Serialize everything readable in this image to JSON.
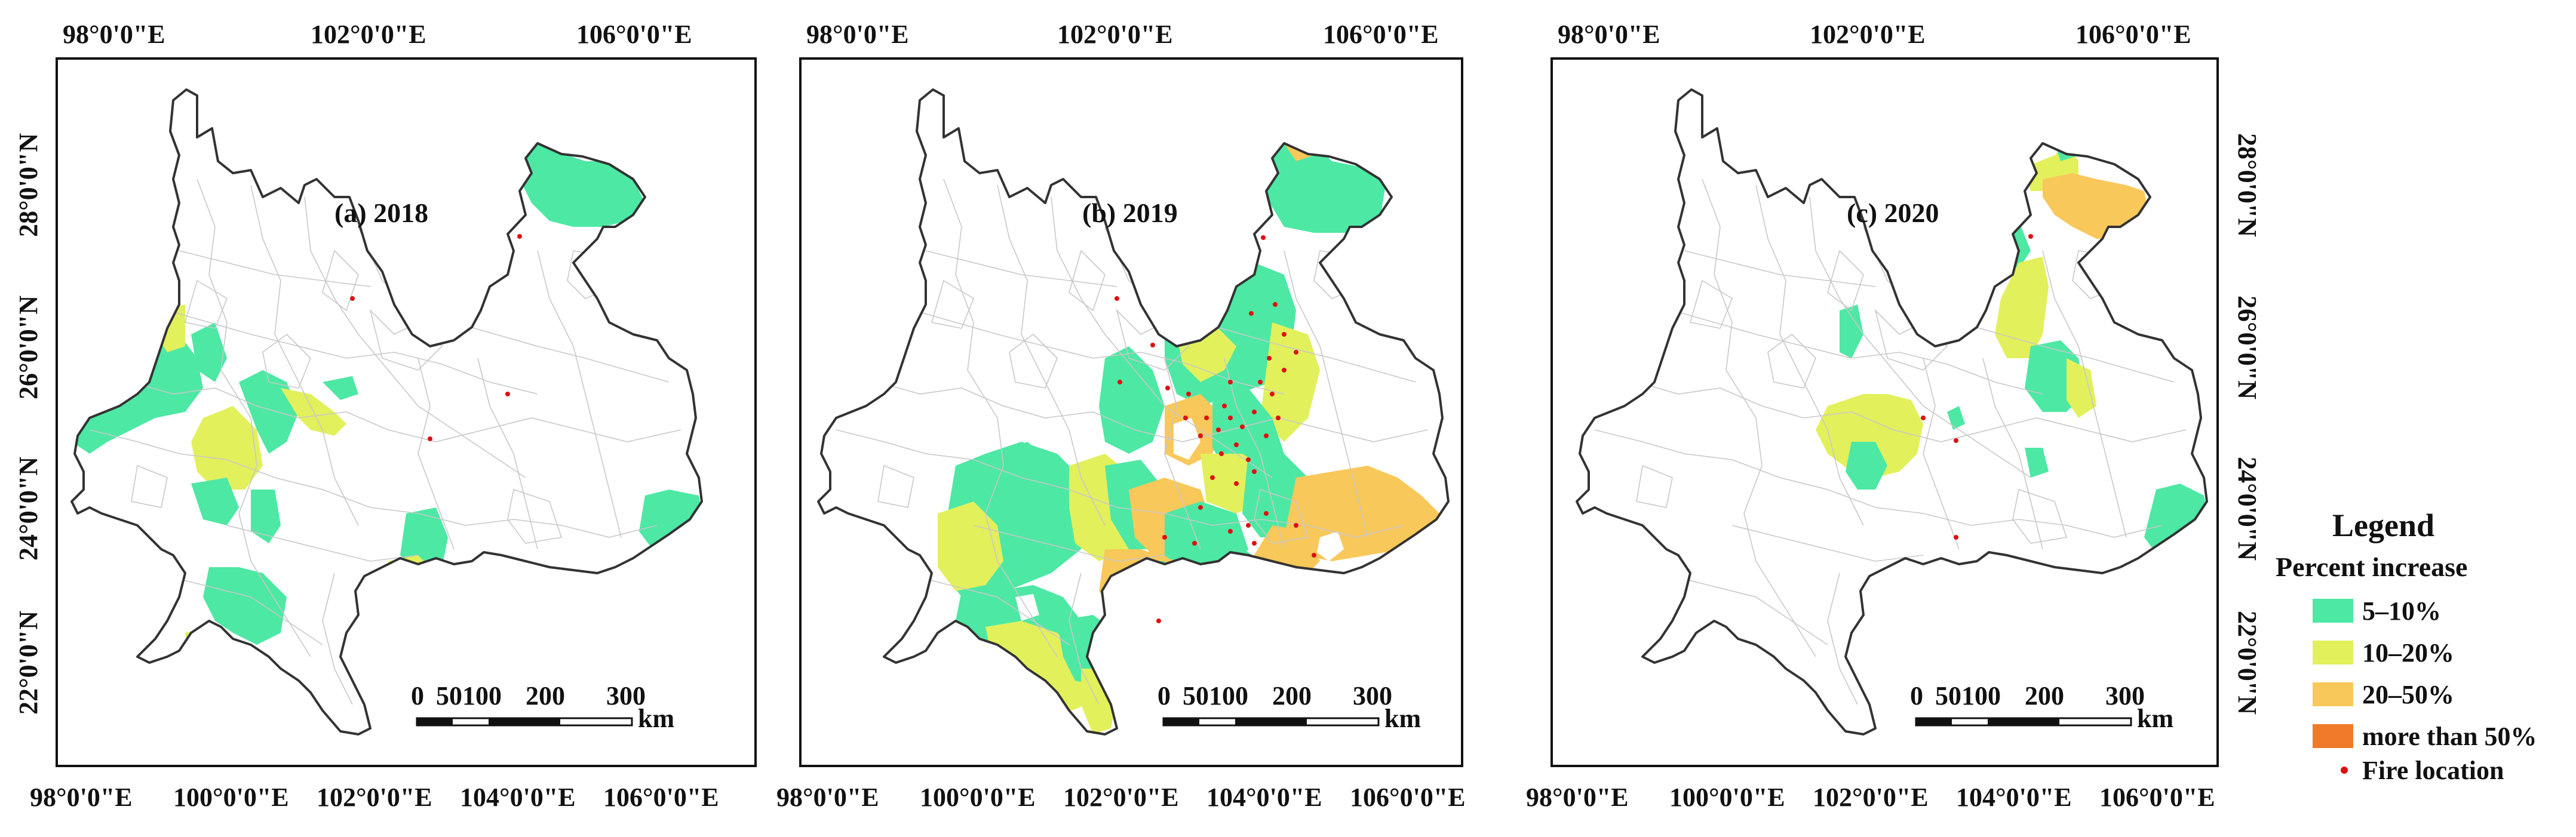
{
  "panels": [
    {
      "label": "(a)  2018",
      "top_ticks": [
        "98°0'0\"E",
        "102°0'0\"E",
        "106°0'0\"E"
      ],
      "bottom_ticks": [
        "98°0'0\"E",
        "100°0'0\"E",
        "102°0'0\"E",
        "104°0'0\"E",
        "106°0'0\"E"
      ],
      "lat_ticks": [
        "28°0'0\"N",
        "26°0'0\"N",
        "24°0'0\"N",
        "22°0'0\"N"
      ],
      "lat_side": "left",
      "scalebar": {
        "numbers": [
          "0",
          "50100",
          "200",
          "300"
        ],
        "unit": "km"
      }
    },
    {
      "label": "(b)  2019",
      "top_ticks": [
        "98°0'0\"E",
        "102°0'0\"E",
        "106°0'0\"E"
      ],
      "bottom_ticks": [
        "98°0'0\"E",
        "100°0'0\"E",
        "102°0'0\"E",
        "104°0'0\"E",
        "106°0'0\"E"
      ],
      "lat_ticks": [],
      "lat_side": "none",
      "scalebar": {
        "numbers": [
          "0",
          "50100",
          "200",
          "300"
        ],
        "unit": "km"
      }
    },
    {
      "label": "(c)  2020",
      "top_ticks": [
        "98°0'0\"E",
        "102°0'0\"E",
        "106°0'0\"E"
      ],
      "bottom_ticks": [
        "98°0'0\"E",
        "100°0'0\"E",
        "102°0'0\"E",
        "104°0'0\"E",
        "106°0'0\"E"
      ],
      "lat_ticks": [
        "28°0'0\"N",
        "26°0'0\"N",
        "24°0'0\"N",
        "22°0'0\"N"
      ],
      "lat_side": "right",
      "scalebar": {
        "numbers": [
          "0",
          "50100",
          "200",
          "300"
        ],
        "unit": "km"
      }
    }
  ],
  "legend": {
    "title": "Legend",
    "subtitle": "Percent increase",
    "items": [
      {
        "label": "5–10%",
        "color": "#4de8a4"
      },
      {
        "label": "10–20%",
        "color": "#e2f05c"
      },
      {
        "label": "20–50%",
        "color": "#f9c85a"
      },
      {
        "label": "more than 50%",
        "color": "#f07a2a"
      }
    ],
    "fire": {
      "label": "Fire location",
      "color": "#e01010"
    }
  },
  "colors": {
    "outline": "#333333",
    "county_lines": "#c8c8c8",
    "background": "#ffffff"
  }
}
